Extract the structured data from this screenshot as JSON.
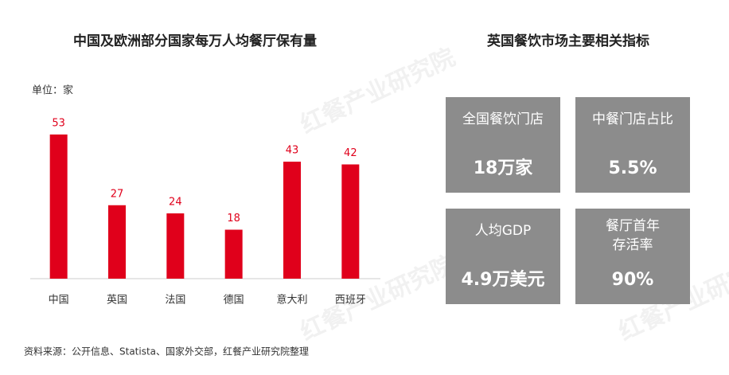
{
  "chart_data": {
    "type": "bar",
    "title": "中国及欧洲部分国家每万人均餐厅保有量",
    "unit_label": "单位：家",
    "categories": [
      "中国",
      "英国",
      "法国",
      "德国",
      "意大利",
      "西班牙"
    ],
    "values": [
      53,
      27,
      24,
      18,
      43,
      42
    ],
    "color": "#e0001b",
    "ylim": [
      0,
      60
    ]
  },
  "panel": {
    "title": "英国餐饮市场主要相关指标",
    "cards": [
      {
        "label": [
          "全国餐饮门店"
        ],
        "value": "18万家"
      },
      {
        "label": [
          "中餐门店占比"
        ],
        "value": "5.5%"
      },
      {
        "label": [
          "人均GDP"
        ],
        "value": "4.9万美元"
      },
      {
        "label": [
          "餐厅首年",
          "存活率"
        ],
        "value": "90%"
      }
    ]
  },
  "source": "资料来源：公开信息、Statista、国家外交部，红餐产业研究院整理",
  "watermark": "红餐产业研究院"
}
